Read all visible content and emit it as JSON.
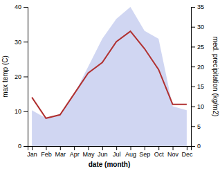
{
  "chart_data": {
    "type": "line",
    "categories": [
      "Jan",
      "Feb",
      "Mar",
      "Apr",
      "May",
      "Jun",
      "Jul",
      "Aug",
      "Sep",
      "Oct",
      "Nov",
      "Dec"
    ],
    "xlabel": "date (month)",
    "ylabel": "max temp (C)",
    "y2label": "med. precipitation (kg/m2)",
    "ylim": [
      0,
      40
    ],
    "yticks": [
      0,
      10,
      20,
      30,
      40
    ],
    "y2lim": [
      0,
      35
    ],
    "y2ticks": [
      0,
      5,
      10,
      15,
      20,
      25,
      30,
      35
    ],
    "series": [
      {
        "type": "area",
        "axis": "y2",
        "color": "#aab4e8",
        "values": [
          9,
          7,
          8,
          13,
          20,
          27,
          32,
          35,
          29,
          27,
          10,
          9
        ]
      },
      {
        "type": "line",
        "color": "#b03030",
        "values": [
          14,
          8,
          9,
          15,
          21,
          24,
          30,
          33,
          28,
          22,
          12,
          12
        ]
      }
    ]
  }
}
